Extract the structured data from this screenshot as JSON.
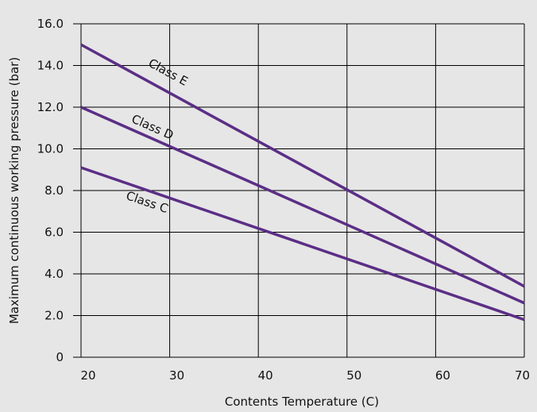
{
  "chart_data": {
    "type": "line",
    "xlabel": "Contents Temperature (C)",
    "ylabel": "Maximum continuous working pressure (bar)",
    "xlim": [
      20,
      70
    ],
    "ylim": [
      0,
      16
    ],
    "x_ticks": [
      20,
      30,
      40,
      50,
      60,
      70
    ],
    "x_tick_labels": [
      "20",
      "30",
      "40",
      "50",
      "60",
      "70"
    ],
    "y_ticks": [
      0,
      2,
      4,
      6,
      8,
      10,
      12,
      14,
      16
    ],
    "y_tick_labels": [
      "0",
      "2.0",
      "4.0",
      "6.0",
      "8.0",
      "10.0",
      "12.0",
      "14.0",
      "16.0"
    ],
    "grid": true,
    "series": [
      {
        "name": "Class E",
        "x": [
          20,
          70
        ],
        "y": [
          15.0,
          3.4
        ],
        "color": "#5b2e86"
      },
      {
        "name": "Class D",
        "x": [
          20,
          70
        ],
        "y": [
          12.0,
          2.6
        ],
        "color": "#5b2e86"
      },
      {
        "name": "Class C",
        "x": [
          20,
          70
        ],
        "y": [
          9.1,
          1.8
        ],
        "color": "#5b2e86"
      }
    ],
    "annotations": [
      {
        "text": "Class E",
        "x": 27.5,
        "y": 14.0
      },
      {
        "text": "Class D",
        "x": 25.6,
        "y": 11.3
      },
      {
        "text": "Class C",
        "x": 25.0,
        "y": 7.6
      }
    ],
    "colors": {
      "background": "#e6e6e6",
      "plot_background": "#e6e6e6",
      "grid": "#000000",
      "line": "#5b2e86"
    }
  }
}
